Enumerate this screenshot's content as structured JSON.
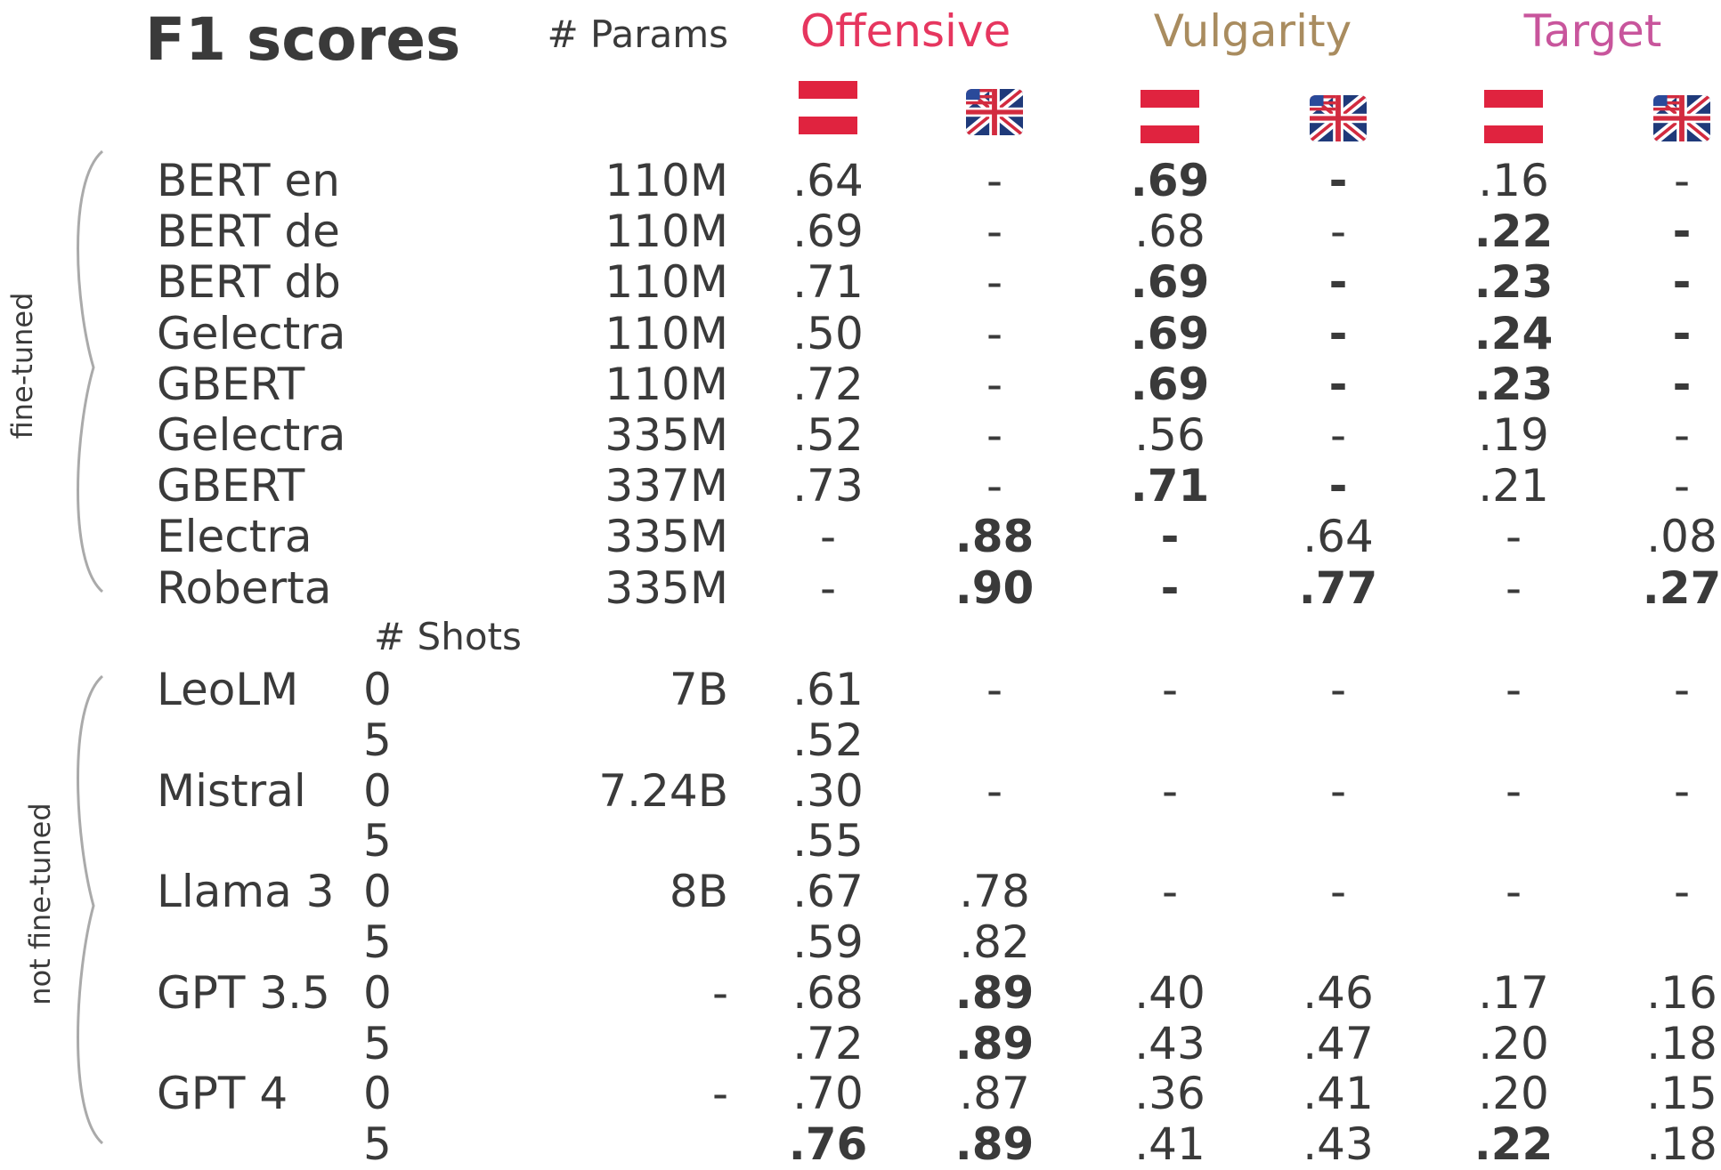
{
  "title": "F1 scores",
  "params_header": "# Params",
  "shots_header": "# Shots",
  "groups": [
    {
      "label": "Offensive",
      "color": "#e6365f"
    },
    {
      "label": "Vulgarity",
      "color": "#a98c5f"
    },
    {
      "label": "Target",
      "color": "#c8559c"
    }
  ],
  "flag_icons": [
    "austria-flag-icon",
    "uk-us-flag-icon",
    "austria-flag-icon",
    "uk-us-flag-icon",
    "austria-flag-icon",
    "uk-us-flag-icon"
  ],
  "section_labels": {
    "fine_tuned": "fine-tuned",
    "not_fine_tuned": "not  fine-tuned"
  },
  "chart_data": {
    "type": "table",
    "title": "F1 scores",
    "columns": [
      "Offensive (Austrian German)",
      "Offensive (English)",
      "Vulgarity (Austrian German)",
      "Vulgarity (English)",
      "Target (Austrian German)",
      "Target (English)"
    ],
    "fine_tuned": [
      {
        "model": "BERT en",
        "params": "110M",
        "values": [
          ".64",
          "-",
          ".69",
          "-",
          ".16",
          "-"
        ],
        "bold": [
          false,
          false,
          true,
          true,
          false,
          false
        ]
      },
      {
        "model": "BERT de",
        "params": "110M",
        "values": [
          ".69",
          "-",
          ".68",
          "-",
          ".22",
          "-"
        ],
        "bold": [
          false,
          false,
          false,
          false,
          true,
          true
        ]
      },
      {
        "model": "BERT db",
        "params": "110M",
        "values": [
          ".71",
          "-",
          ".69",
          "-",
          ".23",
          "-"
        ],
        "bold": [
          false,
          false,
          true,
          true,
          true,
          true
        ]
      },
      {
        "model": "Gelectra",
        "params": "110M",
        "values": [
          ".50",
          "-",
          ".69",
          "-",
          ".24",
          "-"
        ],
        "bold": [
          false,
          false,
          true,
          true,
          true,
          true
        ]
      },
      {
        "model": "GBERT",
        "params": "110M",
        "values": [
          ".72",
          "-",
          ".69",
          "-",
          ".23",
          "-"
        ],
        "bold": [
          false,
          false,
          true,
          true,
          true,
          true
        ]
      },
      {
        "model": "Gelectra",
        "params": "335M",
        "values": [
          ".52",
          "-",
          ".56",
          "-",
          ".19",
          "-"
        ],
        "bold": [
          false,
          false,
          false,
          false,
          false,
          false
        ]
      },
      {
        "model": "GBERT",
        "params": "337M",
        "values": [
          ".73",
          "-",
          ".71",
          "-",
          ".21",
          "-"
        ],
        "bold": [
          false,
          false,
          true,
          true,
          false,
          false
        ]
      },
      {
        "model": "Electra",
        "params": "335M",
        "values": [
          "-",
          ".88",
          "-",
          ".64",
          "-",
          ".08"
        ],
        "bold": [
          false,
          true,
          true,
          false,
          false,
          false
        ]
      },
      {
        "model": "Roberta",
        "params": "335M",
        "values": [
          "-",
          ".90",
          "-",
          ".77",
          "-",
          ".27"
        ],
        "bold": [
          false,
          true,
          true,
          true,
          false,
          true
        ]
      }
    ],
    "not_fine_tuned": [
      {
        "model": "LeoLM",
        "shots": "0",
        "params": "7B",
        "values": [
          ".61",
          "-",
          "-",
          "-",
          "-",
          "-"
        ],
        "bold": [
          false,
          false,
          false,
          false,
          false,
          false
        ]
      },
      {
        "model": "",
        "shots": "5",
        "params": "",
        "values": [
          ".52",
          "",
          "",
          "",
          "",
          ""
        ],
        "bold": [
          false,
          false,
          false,
          false,
          false,
          false
        ]
      },
      {
        "model": "Mistral",
        "shots": "0",
        "params": "7.24B",
        "values": [
          ".30",
          "-",
          "-",
          "-",
          "-",
          "-"
        ],
        "bold": [
          false,
          false,
          false,
          false,
          false,
          false
        ]
      },
      {
        "model": "",
        "shots": "5",
        "params": "",
        "values": [
          ".55",
          "",
          "",
          "",
          "",
          ""
        ],
        "bold": [
          false,
          false,
          false,
          false,
          false,
          false
        ]
      },
      {
        "model": "Llama 3",
        "shots": "0",
        "params": "8B",
        "values": [
          ".67",
          ".78",
          "-",
          "-",
          "-",
          "-"
        ],
        "bold": [
          false,
          false,
          false,
          false,
          false,
          false
        ]
      },
      {
        "model": "",
        "shots": "5",
        "params": "",
        "values": [
          ".59",
          ".82",
          "",
          "",
          "",
          ""
        ],
        "bold": [
          false,
          false,
          false,
          false,
          false,
          false
        ]
      },
      {
        "model": "GPT 3.5",
        "shots": "0",
        "params": "-",
        "values": [
          ".68",
          ".89",
          ".40",
          ".46",
          ".17",
          ".16"
        ],
        "bold": [
          false,
          true,
          false,
          false,
          false,
          false
        ]
      },
      {
        "model": "",
        "shots": "5",
        "params": "",
        "values": [
          ".72",
          ".89",
          ".43",
          ".47",
          ".20",
          ".18"
        ],
        "bold": [
          false,
          true,
          false,
          false,
          false,
          false
        ]
      },
      {
        "model": "GPT 4",
        "shots": "0",
        "params": "-",
        "values": [
          ".70",
          ".87",
          ".36",
          ".41",
          ".20",
          ".15"
        ],
        "bold": [
          false,
          false,
          false,
          false,
          false,
          false
        ]
      },
      {
        "model": "",
        "shots": "5",
        "params": "",
        "values": [
          ".76",
          ".89",
          ".41",
          ".43",
          ".22",
          ".18"
        ],
        "bold": [
          true,
          true,
          false,
          false,
          true,
          false
        ]
      }
    ]
  }
}
